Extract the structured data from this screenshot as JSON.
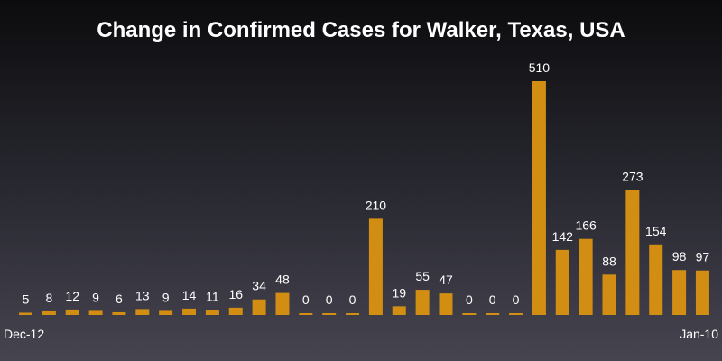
{
  "chart_data": {
    "type": "bar",
    "title": "Change in Confirmed Cases for Walker, Texas, USA",
    "xlabel": "",
    "ylabel": "",
    "x_tick_labels": [
      "Dec-12",
      "Jan-10"
    ],
    "values": [
      5,
      8,
      12,
      9,
      6,
      13,
      9,
      14,
      11,
      16,
      34,
      48,
      0,
      0,
      0,
      210,
      19,
      55,
      47,
      0,
      0,
      0,
      510,
      142,
      166,
      88,
      273,
      154,
      98,
      97
    ],
    "ylim": [
      0,
      510
    ],
    "grid": false,
    "legend": "none",
    "colors": {
      "bar": "#d18e12",
      "text": "#ffffff"
    }
  }
}
